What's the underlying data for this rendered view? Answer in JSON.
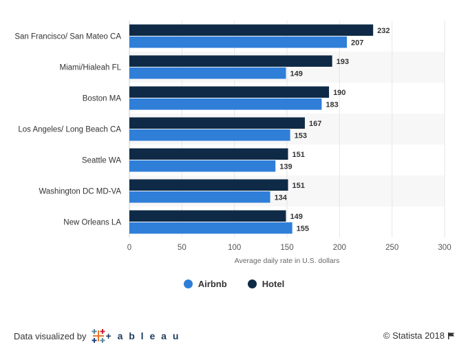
{
  "chart_data": {
    "type": "bar",
    "orientation": "horizontal",
    "categories": [
      "San Francisco/ San Mateo CA",
      "Miami/Hialeah FL",
      "Boston MA",
      "Los Angeles/ Long Beach CA",
      "Seattle WA",
      "Washington DC MD-VA",
      "New Orleans LA"
    ],
    "series": [
      {
        "name": "Hotel",
        "values": [
          232,
          193,
          190,
          167,
          151,
          151,
          149
        ],
        "color": "#0e2a47"
      },
      {
        "name": "Airbnb",
        "values": [
          207,
          149,
          183,
          153,
          139,
          134,
          155
        ],
        "color": "#2f7ed8"
      }
    ],
    "xlabel": "Average daily rate in U.S. dollars",
    "xlim": [
      0,
      300
    ],
    "xticks": [
      0,
      50,
      100,
      150,
      200,
      250,
      300
    ],
    "grid": true,
    "legend_position": "bottom"
  },
  "legend": {
    "items": [
      {
        "label": "Airbnb",
        "color": "#2f7ed8"
      },
      {
        "label": "Hotel",
        "color": "#0e2a47"
      }
    ]
  },
  "footer": {
    "visualized_by": "Data visualized by",
    "tableau_word": "+ a b l e a u",
    "credit": "© Statista 2018"
  }
}
